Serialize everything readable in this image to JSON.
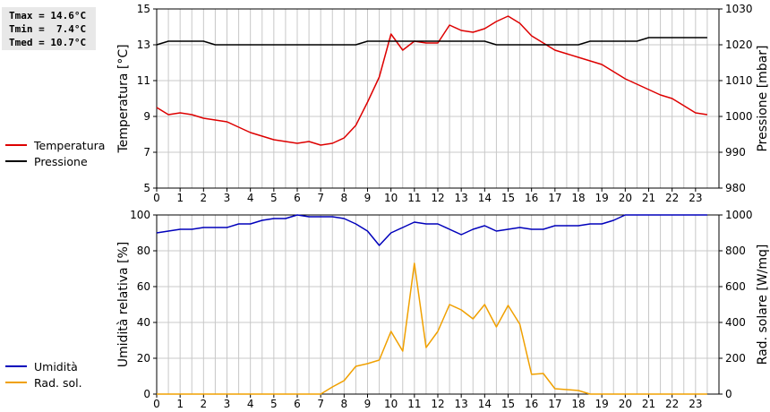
{
  "stats": {
    "tmax": "Tmax = 14.6°C",
    "tmin": "Tmin =  7.4°C",
    "tmed": "Tmed = 10.7°C"
  },
  "legend_top": [
    {
      "label": "Temperatura",
      "color": "#dd0000"
    },
    {
      "label": "Pressione",
      "color": "#000000"
    }
  ],
  "legend_bottom": [
    {
      "label": "Umidità",
      "color": "#0000bb"
    },
    {
      "label": "Rad. sol.",
      "color": "#f0a000"
    }
  ],
  "chart_data": [
    {
      "type": "line",
      "xlabel": "",
      "ylabel": "Temperatura [°C]",
      "ylabel_right": "Pressione [mbar]",
      "xlim": [
        0,
        24
      ],
      "xticks": [
        0,
        1,
        2,
        3,
        4,
        5,
        6,
        7,
        8,
        9,
        10,
        11,
        12,
        13,
        14,
        15,
        16,
        17,
        18,
        19,
        20,
        21,
        22,
        23
      ],
      "ylim": [
        5,
        15
      ],
      "yticks": [
        5,
        7,
        9,
        11,
        13,
        15
      ],
      "ylim_right": [
        980,
        1030
      ],
      "yticks_right": [
        980,
        990,
        1000,
        1010,
        1020,
        1030
      ],
      "grid": true,
      "series": [
        {
          "name": "Temperatura",
          "axis": "left",
          "color": "#dd0000",
          "x": [
            0,
            0.5,
            1,
            1.5,
            2,
            2.5,
            3,
            3.5,
            4,
            4.5,
            5,
            5.5,
            6,
            6.5,
            7,
            7.5,
            8,
            8.5,
            9,
            9.5,
            10,
            10.5,
            11,
            11.5,
            12,
            12.5,
            13,
            13.5,
            14,
            14.5,
            15,
            15.5,
            16,
            16.5,
            17,
            17.5,
            18,
            18.5,
            19,
            19.5,
            20,
            20.5,
            21,
            21.5,
            22,
            22.5,
            23,
            23.5
          ],
          "values": [
            9.5,
            9.1,
            9.2,
            9.1,
            8.9,
            8.8,
            8.7,
            8.4,
            8.1,
            7.9,
            7.7,
            7.6,
            7.5,
            7.6,
            7.4,
            7.5,
            7.8,
            8.5,
            9.8,
            11.2,
            13.6,
            12.7,
            13.2,
            13.1,
            13.1,
            14.1,
            13.8,
            13.7,
            13.9,
            14.3,
            14.6,
            14.2,
            13.5,
            13.1,
            12.7,
            12.5,
            12.3,
            12.1,
            11.9,
            11.5,
            11.1,
            10.8,
            10.5,
            10.2,
            10.0,
            9.6,
            9.2,
            9.1
          ]
        },
        {
          "name": "Pressione",
          "axis": "right",
          "color": "#000000",
          "x": [
            0,
            0.5,
            1,
            1.5,
            2,
            2.5,
            3,
            3.5,
            4,
            4.5,
            5,
            5.5,
            6,
            6.5,
            7,
            7.5,
            8,
            8.5,
            9,
            9.5,
            10,
            10.5,
            11,
            11.5,
            12,
            12.5,
            13,
            13.5,
            14,
            14.5,
            15,
            15.5,
            16,
            16.5,
            17,
            17.5,
            18,
            18.5,
            19,
            19.5,
            20,
            20.5,
            21,
            21.5,
            22,
            22.5,
            23,
            23.5
          ],
          "values": [
            1020,
            1021,
            1021,
            1021,
            1021,
            1020,
            1020,
            1020,
            1020,
            1020,
            1020,
            1020,
            1020,
            1020,
            1020,
            1020,
            1020,
            1020,
            1021,
            1021,
            1021,
            1021,
            1021,
            1021,
            1021,
            1021,
            1021,
            1021,
            1021,
            1020,
            1020,
            1020,
            1020,
            1020,
            1020,
            1020,
            1020,
            1021,
            1021,
            1021,
            1021,
            1021,
            1022,
            1022,
            1022,
            1022,
            1022,
            1022
          ]
        }
      ]
    },
    {
      "type": "line",
      "xlabel": "",
      "ylabel": "Umidità relativa [%]",
      "ylabel_right": "Rad. solare [W/mq]",
      "xlim": [
        0,
        24
      ],
      "xticks": [
        0,
        1,
        2,
        3,
        4,
        5,
        6,
        7,
        8,
        9,
        10,
        11,
        12,
        13,
        14,
        15,
        16,
        17,
        18,
        19,
        20,
        21,
        22,
        23
      ],
      "ylim": [
        0,
        100
      ],
      "yticks": [
        0,
        20,
        40,
        60,
        80,
        100
      ],
      "ylim_right": [
        0,
        1000
      ],
      "yticks_right": [
        0,
        200,
        400,
        600,
        800,
        1000
      ],
      "grid": true,
      "series": [
        {
          "name": "Umidità",
          "axis": "left",
          "color": "#0000bb",
          "x": [
            0,
            0.5,
            1,
            1.5,
            2,
            2.5,
            3,
            3.5,
            4,
            4.5,
            5,
            5.5,
            6,
            6.5,
            7,
            7.5,
            8,
            8.5,
            9,
            9.5,
            10,
            10.5,
            11,
            11.5,
            12,
            12.5,
            13,
            13.5,
            14,
            14.5,
            15,
            15.5,
            16,
            16.5,
            17,
            17.5,
            18,
            18.5,
            19,
            19.5,
            20,
            20.5,
            21,
            21.5,
            22,
            22.5,
            23,
            23.5
          ],
          "values": [
            90,
            91,
            92,
            92,
            93,
            93,
            93,
            95,
            95,
            97,
            98,
            98,
            100,
            99,
            99,
            99,
            98,
            95,
            91,
            83,
            90,
            93,
            96,
            95,
            95,
            92,
            89,
            92,
            94,
            91,
            92,
            93,
            92,
            92,
            94,
            94,
            94,
            95,
            95,
            97,
            100,
            100,
            100,
            100,
            100,
            100,
            100,
            100
          ]
        },
        {
          "name": "Rad. sol.",
          "axis": "right",
          "color": "#f0a000",
          "x": [
            0,
            0.5,
            1,
            1.5,
            2,
            2.5,
            3,
            3.5,
            4,
            4.5,
            5,
            5.5,
            6,
            6.5,
            7,
            7.5,
            8,
            8.5,
            9,
            9.5,
            10,
            10.5,
            11,
            11.5,
            12,
            12.5,
            13,
            13.5,
            14,
            14.5,
            15,
            15.5,
            16,
            16.5,
            17,
            17.5,
            18,
            18.5,
            19,
            19.5,
            20,
            20.5,
            21,
            21.5,
            22,
            22.5,
            23,
            23.5
          ],
          "values": [
            0,
            0,
            0,
            0,
            0,
            0,
            0,
            0,
            0,
            0,
            0,
            0,
            0,
            0,
            0,
            40,
            75,
            155,
            170,
            190,
            350,
            240,
            730,
            260,
            350,
            500,
            470,
            420,
            500,
            375,
            495,
            390,
            110,
            115,
            30,
            25,
            20,
            0,
            0,
            0,
            0,
            0,
            0,
            0,
            0,
            0,
            0,
            0
          ]
        }
      ]
    }
  ]
}
